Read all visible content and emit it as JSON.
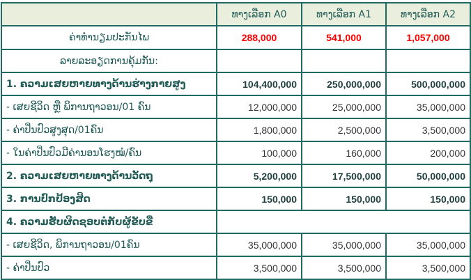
{
  "header": {
    "options": [
      "ທາງເລືອກ A0",
      "ທາງເລືອກ A1",
      "ທາງເລືອກ A2"
    ]
  },
  "premium": {
    "label": "ຄ່າທໍານຽມປະກັນໄພ",
    "values": [
      "288,000",
      "541,000",
      "1,057,000"
    ],
    "color": "#ff0000"
  },
  "coverage_label": "ລາຍລະອຽດການຄຸ້ມກັນ:",
  "rows": [
    {
      "label": "1.  ຄວາມເສຍຫາຍທາງດ້ານຮ່າງກາຍສູງ",
      "values": [
        "104,400,000",
        "250,000,000",
        "500,000,000"
      ],
      "bold": true
    },
    {
      "label": "-  ເສຍຊີວິດ  ຫຼື  ພິການຖາວອນ/01  ຄົນ",
      "values": [
        "12,000,000",
        "25,000,000",
        "35,000,000"
      ]
    },
    {
      "label": "-  ຄ່າປິ່ນປົວສູງສຸດ/01ຄົນ",
      "values": [
        "1,800,000",
        "2,500,000",
        "3,500,000"
      ]
    },
    {
      "label": "-  ໃນຄ່າປິ່ນປົວມີຄ່ານອນໂຮງໝໍ/ຄົນ",
      "values": [
        "100,000",
        "160,000",
        "200,000"
      ]
    },
    {
      "label": "2.  ຄວາມເສຍຫາຍທາງດ້ານວັດຖຸ",
      "values": [
        "5,200,000",
        "17,500,000",
        "50,000,000"
      ],
      "bold": true
    },
    {
      "label": "3.  ການປົກປ້ອງສິດ",
      "values": [
        "150,000",
        "150,000",
        "150,000"
      ],
      "bold": true
    },
    {
      "label": "4.  ຄວາມຮັບຜິດຊອບຕໍ່ກັບຜູ້ຂັບຂີ່",
      "bold": true,
      "span": true
    },
    {
      "label": "-  ເສຍຊີວິດ,  ພິການຖາວອນ/01ຄົນ",
      "values": [
        "35,000,000",
        "35,000,000",
        "35,000,000"
      ]
    },
    {
      "label": "-  ຄ່າປິ່ນປົວ",
      "values": [
        "3,500,000",
        "3,500,000",
        "3,500,000"
      ]
    }
  ]
}
